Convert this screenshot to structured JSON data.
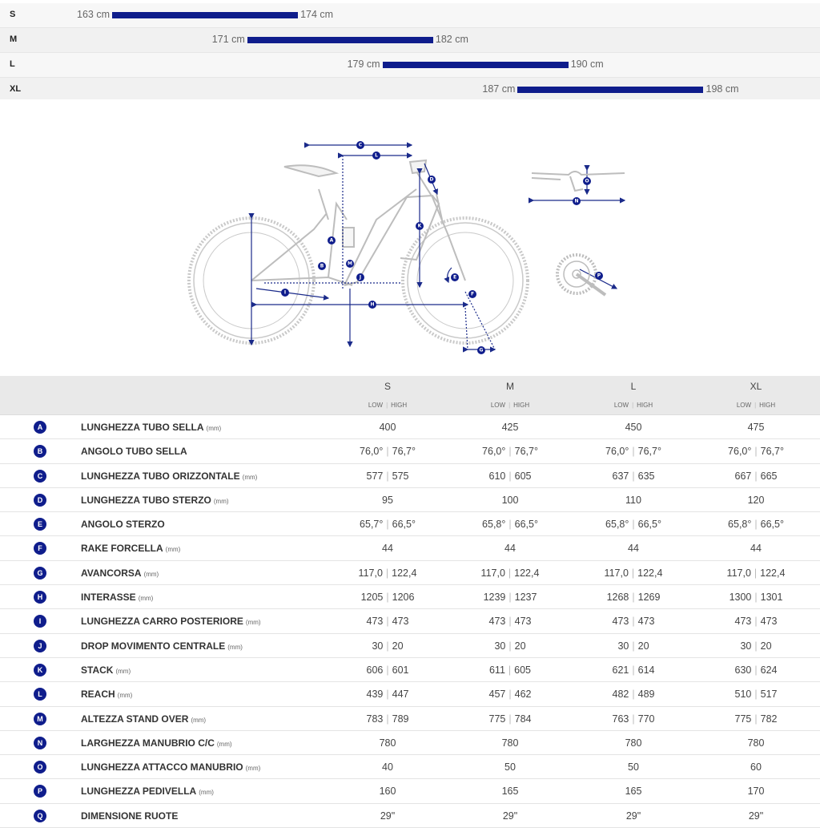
{
  "size_guide": [
    {
      "size": "S",
      "min": "163 cm",
      "max": "174 cm"
    },
    {
      "size": "M",
      "min": "171 cm",
      "max": "182 cm"
    },
    {
      "size": "L",
      "min": "179 cm",
      "max": "190 cm"
    },
    {
      "size": "XL",
      "min": "187 cm",
      "max": "198 cm"
    }
  ],
  "diagram": {
    "labels": [
      "A",
      "B",
      "C",
      "D",
      "E",
      "F",
      "G",
      "H",
      "I",
      "J",
      "K",
      "L",
      "M",
      "N",
      "O",
      "P"
    ]
  },
  "table": {
    "sizes": [
      "S",
      "M",
      "L",
      "XL"
    ],
    "sub_header": [
      "LOW",
      "HIGH"
    ],
    "rows": [
      {
        "letter": "A",
        "name": "LUNGHEZZA TUBO SELLA",
        "unit": "(mm)",
        "values": [
          [
            "400"
          ],
          [
            "425"
          ],
          [
            "450"
          ],
          [
            "475"
          ]
        ]
      },
      {
        "letter": "B",
        "name": "ANGOLO TUBO SELLA",
        "unit": "",
        "values": [
          [
            "76,0°",
            "76,7°"
          ],
          [
            "76,0°",
            "76,7°"
          ],
          [
            "76,0°",
            "76,7°"
          ],
          [
            "76,0°",
            "76,7°"
          ]
        ]
      },
      {
        "letter": "C",
        "name": "LUNGHEZZA TUBO ORIZZONTALE",
        "unit": "(mm)",
        "values": [
          [
            "577",
            "575"
          ],
          [
            "610",
            "605"
          ],
          [
            "637",
            "635"
          ],
          [
            "667",
            "665"
          ]
        ]
      },
      {
        "letter": "D",
        "name": "LUNGHEZZA TUBO STERZO",
        "unit": "(mm)",
        "values": [
          [
            "95"
          ],
          [
            "100"
          ],
          [
            "110"
          ],
          [
            "120"
          ]
        ]
      },
      {
        "letter": "E",
        "name": "ANGOLO STERZO",
        "unit": "",
        "values": [
          [
            "65,7°",
            "66,5°"
          ],
          [
            "65,8°",
            "66,5°"
          ],
          [
            "65,8°",
            "66,5°"
          ],
          [
            "65,8°",
            "66,5°"
          ]
        ]
      },
      {
        "letter": "F",
        "name": "RAKE FORCELLA",
        "unit": "(mm)",
        "values": [
          [
            "44"
          ],
          [
            "44"
          ],
          [
            "44"
          ],
          [
            "44"
          ]
        ]
      },
      {
        "letter": "G",
        "name": "AVANCORSA",
        "unit": "(mm)",
        "values": [
          [
            "117,0",
            "122,4"
          ],
          [
            "117,0",
            "122,4"
          ],
          [
            "117,0",
            "122,4"
          ],
          [
            "117,0",
            "122,4"
          ]
        ]
      },
      {
        "letter": "H",
        "name": "INTERASSE",
        "unit": "(mm)",
        "values": [
          [
            "1205",
            "1206"
          ],
          [
            "1239",
            "1237"
          ],
          [
            "1268",
            "1269"
          ],
          [
            "1300",
            "1301"
          ]
        ]
      },
      {
        "letter": "I",
        "name": "LUNGHEZZA CARRO POSTERIORE",
        "unit": "(mm)",
        "values": [
          [
            "473",
            "473"
          ],
          [
            "473",
            "473"
          ],
          [
            "473",
            "473"
          ],
          [
            "473",
            "473"
          ]
        ]
      },
      {
        "letter": "J",
        "name": "DROP MOVIMENTO CENTRALE",
        "unit": "(mm)",
        "values": [
          [
            "30",
            "20"
          ],
          [
            "30",
            "20"
          ],
          [
            "30",
            "20"
          ],
          [
            "30",
            "20"
          ]
        ]
      },
      {
        "letter": "K",
        "name": "STACK",
        "unit": "(mm)",
        "values": [
          [
            "606",
            "601"
          ],
          [
            "611",
            "605"
          ],
          [
            "621",
            "614"
          ],
          [
            "630",
            "624"
          ]
        ]
      },
      {
        "letter": "L",
        "name": "REACH",
        "unit": "(mm)",
        "values": [
          [
            "439",
            "447"
          ],
          [
            "457",
            "462"
          ],
          [
            "482",
            "489"
          ],
          [
            "510",
            "517"
          ]
        ]
      },
      {
        "letter": "M",
        "name": "ALTEZZA STAND OVER",
        "unit": "(mm)",
        "values": [
          [
            "783",
            "789"
          ],
          [
            "775",
            "784"
          ],
          [
            "763",
            "770"
          ],
          [
            "775",
            "782"
          ]
        ]
      },
      {
        "letter": "N",
        "name": "LARGHEZZA MANUBRIO C/C",
        "unit": "(mm)",
        "values": [
          [
            "780"
          ],
          [
            "780"
          ],
          [
            "780"
          ],
          [
            "780"
          ]
        ]
      },
      {
        "letter": "O",
        "name": "LUNGHEZZA ATTACCO MANUBRIO",
        "unit": "(mm)",
        "values": [
          [
            "40"
          ],
          [
            "50"
          ],
          [
            "50"
          ],
          [
            "60"
          ]
        ]
      },
      {
        "letter": "P",
        "name": "LUNGHEZZA PEDIVELLA",
        "unit": "(mm)",
        "values": [
          [
            "160"
          ],
          [
            "165"
          ],
          [
            "165"
          ],
          [
            "170"
          ]
        ]
      },
      {
        "letter": "Q",
        "name": "DIMENSIONE RUOTE",
        "unit": "",
        "values": [
          [
            "29\""
          ],
          [
            "29\""
          ],
          [
            "29\""
          ],
          [
            "29\""
          ]
        ]
      }
    ]
  },
  "colors": {
    "accent": "#0f1d8c",
    "row_alt": "#f1f1f1",
    "header": "#e9e9e9"
  }
}
